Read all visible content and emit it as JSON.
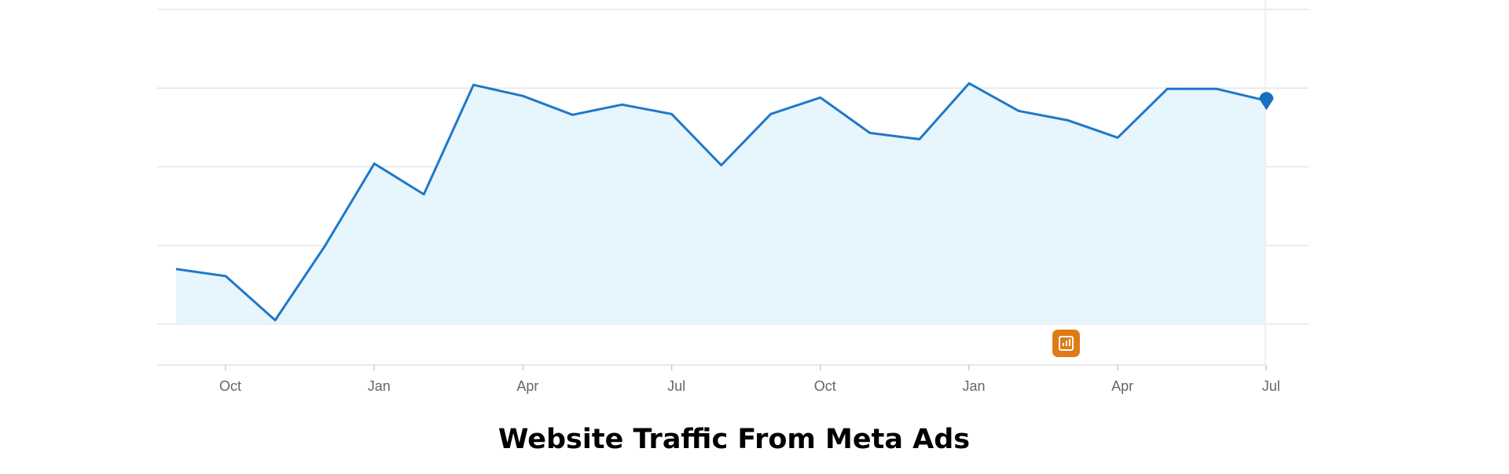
{
  "chart_data": {
    "type": "area",
    "title": "Website Traffic From Meta Ads",
    "categories": [
      null,
      "Oct",
      null,
      null,
      "Jan",
      null,
      null,
      "Apr",
      null,
      null,
      "Jul",
      null,
      null,
      "Oct",
      null,
      null,
      "Jan",
      null,
      null,
      "Apr",
      null,
      null,
      "Jul"
    ],
    "values": [
      0.7,
      0.61,
      0.05,
      0.99,
      2.04,
      1.65,
      3.04,
      2.9,
      2.66,
      2.79,
      2.67,
      2.02,
      2.67,
      2.88,
      2.43,
      2.35,
      3.06,
      2.71,
      2.59,
      2.37,
      2.99,
      2.99,
      2.84
    ],
    "color": "#1f78c8",
    "fill": "#e7f5fd",
    "ylim": [
      0,
      4
    ],
    "yticks": [
      0,
      1,
      2,
      3,
      4
    ],
    "grid": true
  }
}
